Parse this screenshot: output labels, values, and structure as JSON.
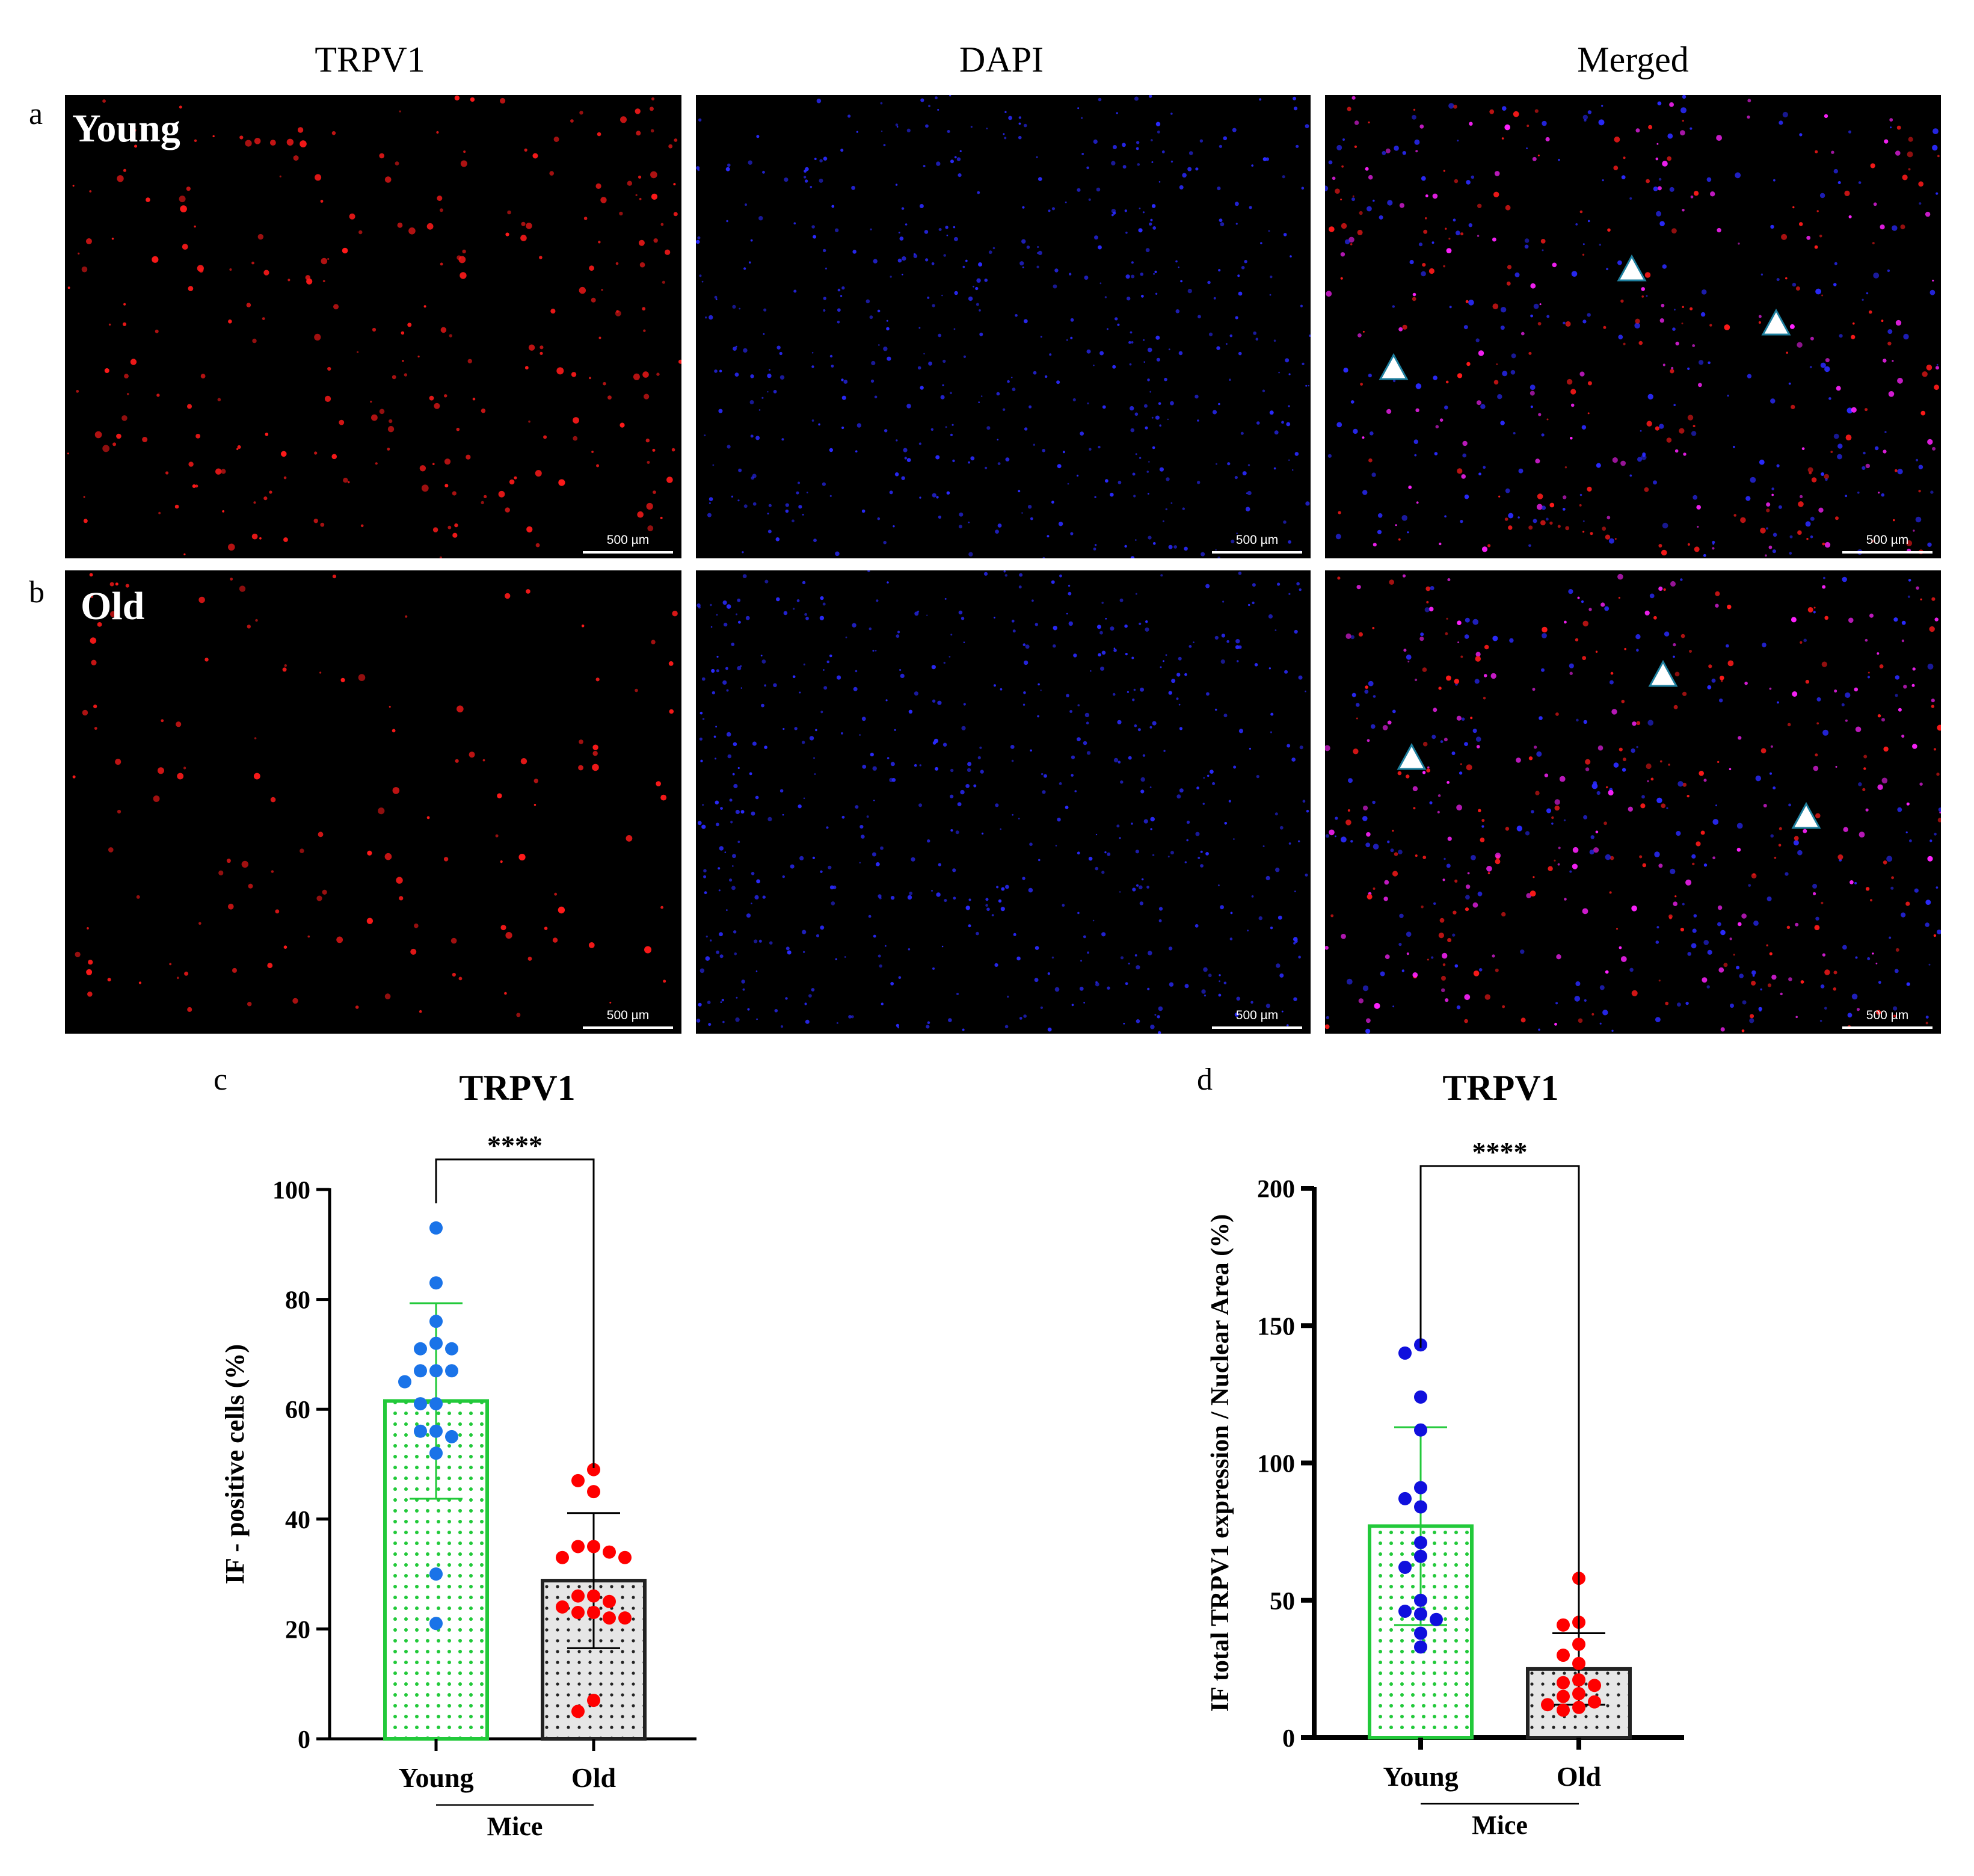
{
  "columns": [
    "TRPV1",
    "DAPI",
    "Merged"
  ],
  "panels": {
    "a": {
      "letter": "a",
      "group": "Young"
    },
    "b": {
      "letter": "b",
      "group": "Old"
    },
    "c": {
      "letter": "c"
    },
    "d": {
      "letter": "d"
    }
  },
  "scale_bar": "500 µm",
  "colors": {
    "trpv1_signal": "#ff1a1a",
    "dapi_signal": "#2a2aff",
    "merged_signal": "#ff22ff",
    "young_bar": "#22c93a",
    "old_bar": "#222222",
    "young_points_c": "#1a73e8",
    "young_points_d": "#1010dd",
    "old_points": "#ff0000"
  },
  "chart_data": [
    {
      "type": "bar",
      "panel": "c",
      "title": "TRPV1",
      "ylabel": "IF - positive cells (%)",
      "xlabel": "Mice",
      "categories": [
        "Young",
        "Old"
      ],
      "ylim": [
        0,
        100
      ],
      "yticks": [
        "0",
        "20",
        "40",
        "60",
        "80",
        "100"
      ],
      "significance": "****",
      "series": [
        {
          "category": "Young",
          "mean": 61.5,
          "sd": 17.8,
          "points": [
            93,
            83,
            76,
            72,
            71,
            71,
            67,
            67,
            67,
            65,
            61,
            61,
            56,
            56,
            55,
            52,
            30,
            21
          ]
        },
        {
          "category": "Old",
          "mean": 28.8,
          "sd": 12.3,
          "points": [
            49,
            47,
            45,
            35,
            35,
            34,
            33,
            33,
            26,
            26,
            25,
            24,
            23,
            23,
            22,
            22,
            7,
            5
          ]
        }
      ]
    },
    {
      "type": "bar",
      "panel": "d",
      "title": "TRPV1",
      "ylabel": "IF total TRPV1 expression / Nuclear Area (%)",
      "xlabel": "Mice",
      "categories": [
        "Young",
        "Old"
      ],
      "ylim": [
        0,
        200
      ],
      "yticks": [
        "0",
        "50",
        "100",
        "150",
        "200"
      ],
      "significance": "****",
      "series": [
        {
          "category": "Young",
          "mean": 77,
          "sd": 36,
          "points": [
            143,
            140,
            124,
            112,
            91,
            87,
            84,
            71,
            66,
            62,
            50,
            46,
            45,
            43,
            38,
            33
          ]
        },
        {
          "category": "Old",
          "mean": 25,
          "sd": 13,
          "points": [
            58,
            42,
            41,
            34,
            30,
            27,
            21,
            20,
            19,
            16,
            15,
            13,
            12,
            11,
            10
          ]
        }
      ]
    }
  ]
}
